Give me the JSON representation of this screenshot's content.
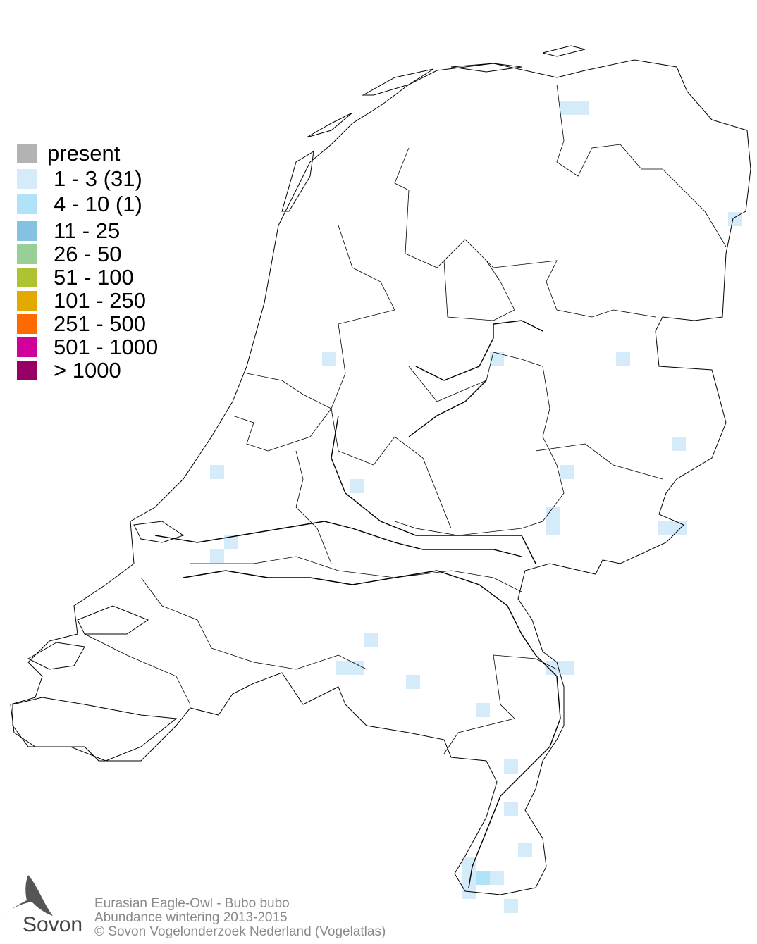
{
  "legend": {
    "items": [
      {
        "label": "present",
        "color": "#b3b3b3"
      },
      {
        "label": "1 - 3 (31)",
        "color": "#d4ebfa"
      },
      {
        "label": "4 - 10 (1)",
        "color": "#b0e2f8"
      },
      {
        "label": "11 - 25",
        "color": "#85c1e0"
      },
      {
        "label": "26 - 50",
        "color": "#98cf94"
      },
      {
        "label": "51 - 100",
        "color": "#afc232"
      },
      {
        "label": "101 - 250",
        "color": "#e2a900"
      },
      {
        "label": "251 - 500",
        "color": "#ff6a00"
      },
      {
        "label": "501 - 1000",
        "color": "#d0009c"
      },
      {
        "label": "> 1000",
        "color": "#990066"
      }
    ]
  },
  "footer": {
    "species": "Eurasian Eagle-Owl - Bubo bubo",
    "subtitle": "Abundance wintering 2013-2015",
    "copyright": "© Sovon Vogelonderzoek Nederland (Vogelatlas)"
  },
  "logo": {
    "text": "Sovon"
  }
}
